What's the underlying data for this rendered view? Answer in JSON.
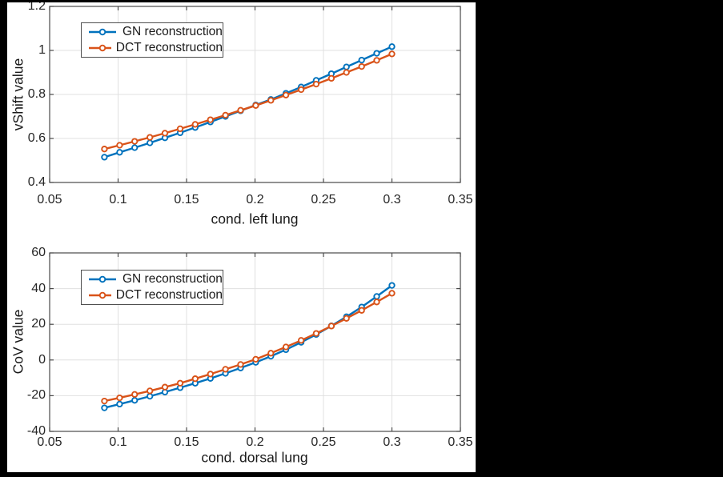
{
  "colors": {
    "series_blue": "#0072bd",
    "series_orange": "#d95319",
    "grid": "#e0e0e0",
    "axis": "#4a4a4a",
    "text": "#262626",
    "figure_background": "#ffffff",
    "letterbox_background": "#000000"
  },
  "chart_data": [
    {
      "type": "line",
      "title": "",
      "xlabel": "cond. left lung",
      "ylabel": "vShift value",
      "xlim": [
        0.05,
        0.35
      ],
      "ylim": [
        0.4,
        1.2
      ],
      "grid": true,
      "legend_position": "top-left-inside",
      "xticks": [
        0.05,
        0.1,
        0.15,
        0.2,
        0.25,
        0.3,
        0.35
      ],
      "xtick_labels": [
        "0.05",
        "0.1",
        "0.15",
        "0.2",
        "0.25",
        "0.3",
        "0.35"
      ],
      "yticks": [
        0.4,
        0.6,
        0.8,
        1.0,
        1.2
      ],
      "ytick_labels": [
        "0.4",
        "0.6",
        "0.8",
        "1",
        "1.2"
      ],
      "x": [
        0.09,
        0.1011,
        0.1121,
        0.1232,
        0.1342,
        0.1453,
        0.1563,
        0.1674,
        0.1784,
        0.1895,
        0.2005,
        0.2116,
        0.2226,
        0.2337,
        0.2447,
        0.2558,
        0.2668,
        0.2779,
        0.2889,
        0.3
      ],
      "series": [
        {
          "name": "GN reconstruction",
          "color": "#0072bd",
          "marker": "circle",
          "values": [
            0.515,
            0.537,
            0.558,
            0.58,
            0.603,
            0.626,
            0.65,
            0.675,
            0.7,
            0.726,
            0.752,
            0.777,
            0.805,
            0.834,
            0.864,
            0.894,
            0.925,
            0.956,
            0.987,
            1.017
          ]
        },
        {
          "name": "DCT reconstruction",
          "color": "#d95319",
          "marker": "circle",
          "values": [
            0.552,
            0.569,
            0.587,
            0.605,
            0.624,
            0.644,
            0.664,
            0.685,
            0.706,
            0.728,
            0.75,
            0.773,
            0.797,
            0.822,
            0.847,
            0.873,
            0.9,
            0.927,
            0.955,
            0.984
          ]
        }
      ]
    },
    {
      "type": "line",
      "title": "",
      "xlabel": "cond. dorsal lung",
      "ylabel": "CoV value",
      "xlim": [
        0.05,
        0.35
      ],
      "ylim": [
        -40,
        60
      ],
      "grid": true,
      "legend_position": "top-left-inside",
      "xticks": [
        0.05,
        0.1,
        0.15,
        0.2,
        0.25,
        0.3,
        0.35
      ],
      "xtick_labels": [
        "0.05",
        "0.1",
        "0.15",
        "0.2",
        "0.25",
        "0.3",
        "0.35"
      ],
      "yticks": [
        -40,
        -20,
        0,
        20,
        40,
        60
      ],
      "ytick_labels": [
        "-40",
        "-20",
        "0",
        "20",
        "40",
        "60"
      ],
      "x": [
        0.09,
        0.1011,
        0.1121,
        0.1232,
        0.1342,
        0.1453,
        0.1563,
        0.1674,
        0.1784,
        0.1895,
        0.2005,
        0.2116,
        0.2226,
        0.2337,
        0.2447,
        0.2558,
        0.2668,
        0.2779,
        0.2889,
        0.3
      ],
      "series": [
        {
          "name": "GN reconstruction",
          "color": "#0072bd",
          "marker": "circle",
          "values": [
            -26.8,
            -24.7,
            -22.6,
            -20.3,
            -18.0,
            -15.5,
            -13.0,
            -10.3,
            -7.5,
            -4.5,
            -1.3,
            2.1,
            5.8,
            9.9,
            14.3,
            19.1,
            24.2,
            29.7,
            35.6,
            41.8
          ]
        },
        {
          "name": "DCT reconstruction",
          "color": "#d95319",
          "marker": "circle",
          "values": [
            -23.0,
            -21.2,
            -19.3,
            -17.3,
            -15.2,
            -13.0,
            -10.5,
            -7.9,
            -5.2,
            -2.5,
            0.4,
            3.8,
            7.3,
            11.0,
            14.9,
            19.0,
            23.3,
            27.8,
            32.5,
            37.4
          ]
        }
      ]
    }
  ]
}
